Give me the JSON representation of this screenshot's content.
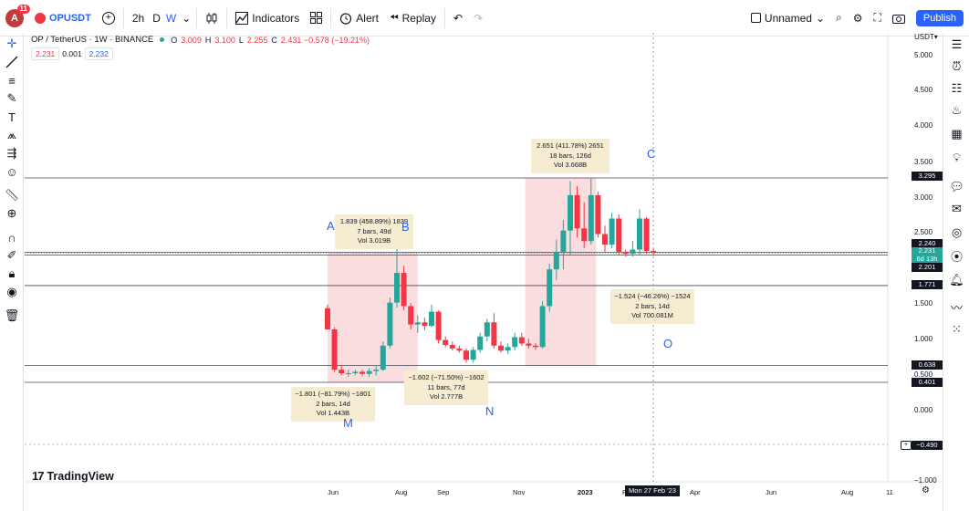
{
  "header": {
    "avatar_letter": "A",
    "avatar_badge": "11",
    "symbol": "OPUSDT",
    "interval_2h": "2h",
    "interval_d": "D",
    "interval_w": "W",
    "indicators_label": "Indicators",
    "alert_label": "Alert",
    "replay_label": "Replay",
    "layout_name": "Unnamed",
    "publish_label": "Publish"
  },
  "legend": {
    "title": "OP / TetherUS · 1W · BINANCE",
    "o_key": "O",
    "o_val": "3.009",
    "h_key": "H",
    "h_val": "3.100",
    "l_key": "L",
    "l_val": "2.255",
    "c_key": "C",
    "c_val": "2.431 −0.578 (−19.21%)",
    "bid": "2.231",
    "spread": "0.001",
    "ask": "2.232"
  },
  "currency": "USDT",
  "chart_data": {
    "type": "candlestick",
    "symbol": "OP / TetherUS",
    "interval": "1W",
    "exchange": "BINANCE",
    "ylim": [
      -1.0,
      5.25
    ],
    "y_ticks": [
      "5.000",
      "4.500",
      "4.000",
      "3.500",
      "3.000",
      "2.500",
      "1.500",
      "1.000",
      "0.500",
      "0.000",
      "−1.000"
    ],
    "x_ticks": [
      "Jun",
      "Aug",
      "Sep",
      "Nov",
      "2023",
      "F",
      "Apr",
      "Jun",
      "Aug",
      "11"
    ],
    "candles": [
      [
        0.0,
        1.45,
        1.5,
        1.15,
        1.15
      ],
      [
        0.8,
        1.15,
        1.18,
        0.55,
        0.58
      ],
      [
        1.6,
        0.58,
        0.65,
        0.5,
        0.53
      ],
      [
        2.4,
        0.53,
        0.58,
        0.48,
        0.53
      ],
      [
        3.2,
        0.53,
        0.58,
        0.5,
        0.55
      ],
      [
        4.0,
        0.55,
        0.58,
        0.49,
        0.52
      ],
      [
        4.8,
        0.52,
        0.6,
        0.48,
        0.56
      ],
      [
        5.6,
        0.56,
        0.64,
        0.5,
        0.58
      ],
      [
        6.4,
        0.58,
        0.98,
        0.56,
        0.92
      ],
      [
        7.2,
        0.92,
        1.6,
        0.88,
        1.53
      ],
      [
        8.0,
        1.53,
        2.3,
        1.46,
        1.95
      ],
      [
        8.8,
        1.95,
        2.05,
        1.42,
        1.48
      ],
      [
        9.6,
        1.48,
        1.52,
        1.15,
        1.22
      ],
      [
        10.4,
        1.22,
        1.35,
        1.1,
        1.25
      ],
      [
        11.2,
        1.25,
        1.32,
        1.14,
        1.2
      ],
      [
        12.0,
        1.2,
        1.5,
        1.18,
        1.4
      ],
      [
        12.8,
        1.4,
        1.42,
        0.95,
        1.0
      ],
      [
        13.6,
        1.0,
        1.05,
        0.9,
        0.93
      ],
      [
        14.4,
        0.93,
        0.98,
        0.85,
        0.88
      ],
      [
        15.2,
        0.88,
        0.92,
        0.82,
        0.85
      ],
      [
        16.0,
        0.85,
        0.88,
        0.68,
        0.72
      ],
      [
        16.8,
        0.72,
        0.9,
        0.68,
        0.86
      ],
      [
        17.6,
        0.86,
        1.1,
        0.82,
        1.05
      ],
      [
        18.4,
        1.05,
        1.3,
        0.98,
        1.25
      ],
      [
        19.2,
        1.25,
        1.38,
        0.88,
        0.92
      ],
      [
        20.0,
        0.92,
        0.98,
        0.82,
        0.85
      ],
      [
        20.8,
        0.85,
        0.95,
        0.8,
        0.9
      ],
      [
        21.6,
        0.9,
        1.1,
        0.85,
        1.04
      ],
      [
        22.4,
        1.04,
        1.1,
        0.92,
        0.95
      ],
      [
        23.2,
        0.95,
        1.02,
        0.88,
        0.92
      ],
      [
        24.0,
        0.92,
        0.96,
        0.86,
        0.9
      ],
      [
        24.8,
        0.9,
        1.55,
        0.88,
        1.48
      ],
      [
        25.6,
        1.48,
        2.08,
        1.4,
        2.0
      ],
      [
        26.4,
        2.0,
        2.42,
        1.85,
        2.25
      ],
      [
        27.2,
        2.25,
        2.7,
        2.0,
        2.55
      ],
      [
        28.0,
        2.55,
        3.25,
        2.2,
        3.05
      ],
      [
        28.8,
        3.05,
        3.18,
        2.45,
        2.58
      ],
      [
        29.6,
        2.58,
        2.95,
        2.3,
        2.4
      ],
      [
        30.4,
        2.4,
        3.3,
        2.35,
        3.05
      ],
      [
        31.2,
        3.05,
        3.1,
        2.45,
        2.5
      ],
      [
        32.0,
        2.5,
        2.62,
        2.25,
        2.35
      ],
      [
        32.8,
        2.35,
        2.8,
        2.3,
        2.72
      ],
      [
        33.6,
        2.72,
        2.78,
        2.2,
        2.25
      ],
      [
        34.4,
        2.25,
        2.28,
        2.18,
        2.22
      ],
      [
        35.2,
        2.22,
        2.4,
        2.18,
        2.28
      ],
      [
        36.0,
        2.28,
        2.85,
        2.2,
        2.72
      ],
      [
        36.8,
        2.72,
        2.74,
        2.22,
        2.26
      ],
      [
        37.6,
        2.26,
        2.3,
        2.2,
        2.24
      ]
    ],
    "levels": [
      "3.295",
      "2.240",
      "2.201",
      "1.771",
      "0.638",
      "0.401"
    ],
    "extra_level": "−0.490",
    "zones": [
      {
        "x0": 0.0,
        "x1": 10.4,
        "y0": 0.4,
        "y1": 2.24
      },
      {
        "x0": 22.8,
        "x1": 31.0,
        "y0": 0.64,
        "y1": 3.3
      }
    ],
    "measures": [
      {
        "lines": [
          "1.839 (458.89%) 1839",
          "7 bars, 49d",
          "Vol 3.019B"
        ]
      },
      {
        "lines": [
          "2.651 (411.78%) 2651",
          "18 bars, 126d",
          "Vol 3.668B"
        ]
      },
      {
        "lines": [
          "−1.801 (−81.79%) −1801",
          "2 bars, 14d",
          "Vol 1.443B"
        ]
      },
      {
        "lines": [
          "−1.602 (−71.50%) −1602",
          "11 bars, 77d",
          "Vol 2.777B"
        ]
      },
      {
        "lines": [
          "−1.524 (−46.26%) −1524",
          "2 bars, 14d",
          "Vol 700.081M"
        ]
      }
    ],
    "wave_labels": [
      "A",
      "B",
      "C",
      "M",
      "N",
      "O"
    ],
    "last_price": "2.231",
    "last_sub": "6d 13h",
    "crosshair_date": "Mon 27 Feb '23"
  },
  "brand": {
    "text": "TradingView"
  },
  "colors": {
    "up": "#26a69a",
    "down": "#f23645",
    "zone": "#f8d2d4",
    "accent": "#2962ff",
    "measure_bg": "#f6ecd1"
  }
}
